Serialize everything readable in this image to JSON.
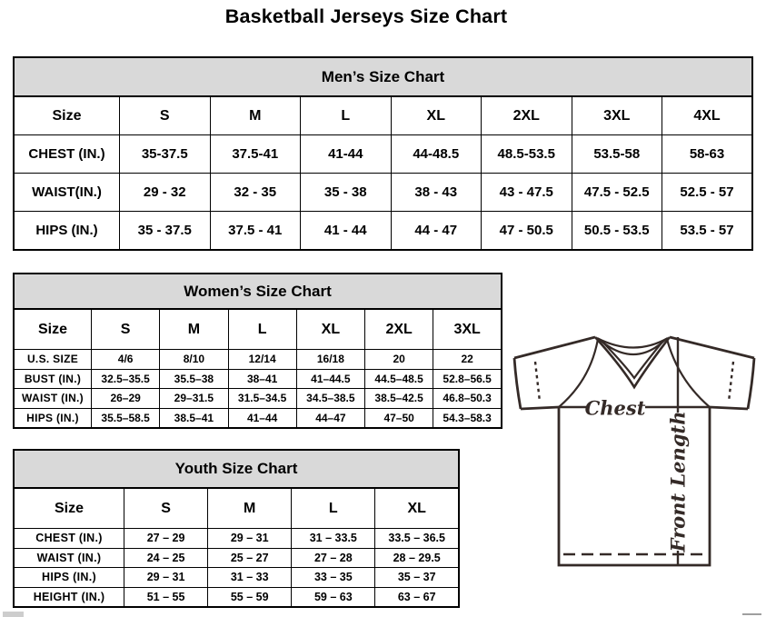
{
  "page": {
    "title": "Basketball Jerseys Size Chart"
  },
  "tables": {
    "men": {
      "title": "Men’s Size Chart",
      "columns": [
        "Size",
        "S",
        "M",
        "L",
        "XL",
        "2XL",
        "3XL",
        "4XL"
      ],
      "rows": [
        {
          "label": "CHEST (IN.)",
          "values": [
            "35-37.5",
            "37.5-41",
            "41-44",
            "44-48.5",
            "48.5-53.5",
            "53.5-58",
            "58-63"
          ]
        },
        {
          "label": "WAIST(IN.)",
          "values": [
            "29 - 32",
            "32 - 35",
            "35 - 38",
            "38 - 43",
            "43 - 47.5",
            "47.5 - 52.5",
            "52.5 - 57"
          ]
        },
        {
          "label": "HIPS (IN.)",
          "values": [
            "35 - 37.5",
            "37.5 - 41",
            "41 - 44",
            "44 - 47",
            "47 - 50.5",
            "50.5 - 53.5",
            "53.5 - 57"
          ]
        }
      ]
    },
    "women": {
      "title": "Women’s Size Chart",
      "columns": [
        "Size",
        "S",
        "M",
        "L",
        "XL",
        "2XL",
        "3XL"
      ],
      "rows": [
        {
          "label": "U.S. SIZE",
          "values": [
            "4/6",
            "8/10",
            "12/14",
            "16/18",
            "20",
            "22"
          ]
        },
        {
          "label": "BUST (IN.)",
          "values": [
            "32.5–35.5",
            "35.5–38",
            "38–41",
            "41–44.5",
            "44.5–48.5",
            "52.8–56.5"
          ]
        },
        {
          "label": "WAIST (IN.)",
          "values": [
            "26–29",
            "29–31.5",
            "31.5–34.5",
            "34.5–38.5",
            "38.5–42.5",
            "46.8–50.3"
          ]
        },
        {
          "label": "HIPS (IN.)",
          "values": [
            "35.5–58.5",
            "38.5–41",
            "41–44",
            "44–47",
            "47–50",
            "54.3–58.3"
          ]
        }
      ]
    },
    "youth": {
      "title": "Youth Size Chart",
      "columns": [
        "Size",
        "S",
        "M",
        "L",
        "XL"
      ],
      "rows": [
        {
          "label": "CHEST (IN.)",
          "values": [
            "27 – 29",
            "29 – 31",
            "31 – 33.5",
            "33.5 – 36.5"
          ]
        },
        {
          "label": "WAIST (IN.)",
          "values": [
            "24 – 25",
            "25 – 27",
            "27 – 28",
            "28 – 29.5"
          ]
        },
        {
          "label": "HIPS (IN.)",
          "values": [
            "29 – 31",
            "31 – 33",
            "33 – 35",
            "35 – 37"
          ]
        },
        {
          "label": "HEIGHT (IN.)",
          "values": [
            "51 – 55",
            "55 – 59",
            "59 – 63",
            "63 – 67"
          ]
        }
      ]
    }
  },
  "diagram": {
    "chest_label": "Chest",
    "front_length_label": "Front Length"
  },
  "colors": {
    "table_header_bg": "#d9d9d9",
    "table_border": "#000000",
    "text": "#000000",
    "diagram_stroke": "#342a27"
  }
}
